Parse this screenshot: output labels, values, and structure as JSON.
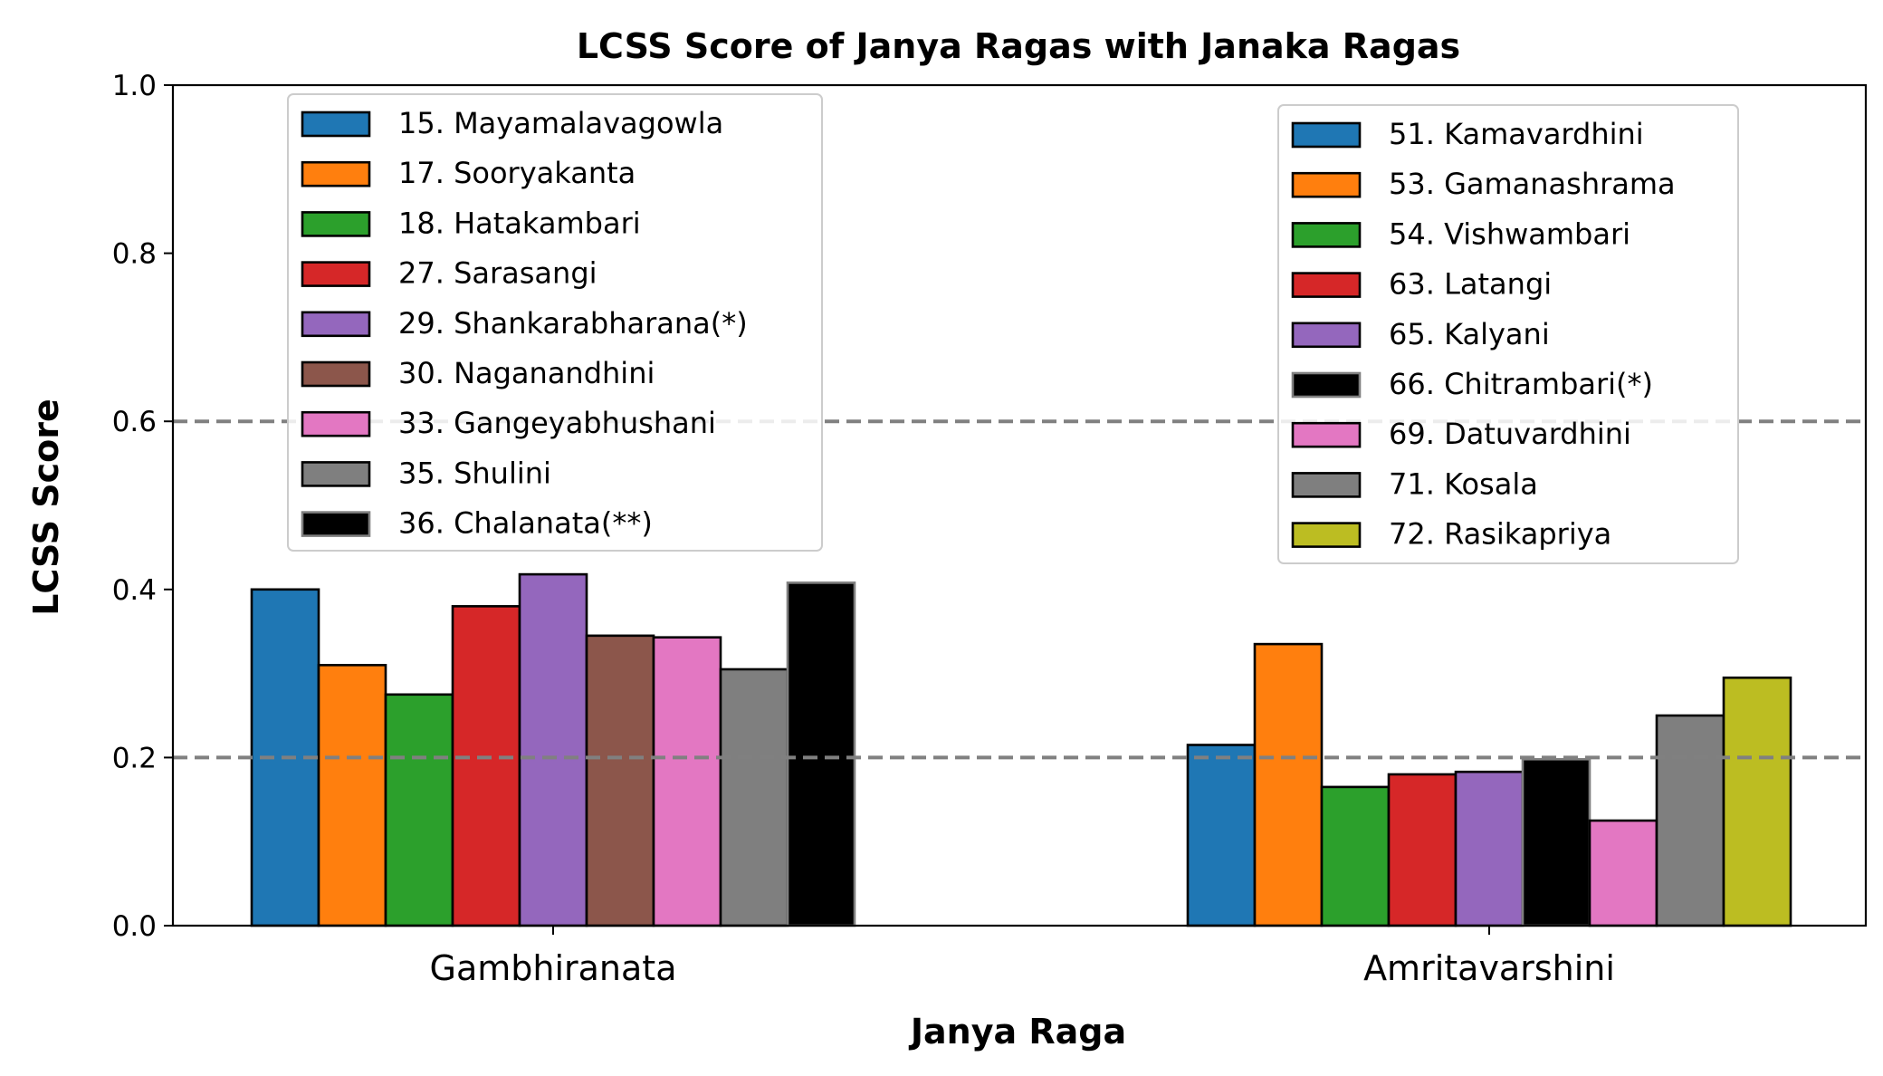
{
  "chart_data": {
    "type": "bar",
    "title": "LCSS Score of Janya Ragas with Janaka Ragas",
    "xlabel": "Janya Raga",
    "ylabel": "LCSS Score",
    "ylim": [
      0,
      1.0
    ],
    "yticks": [
      "0.0",
      "0.2",
      "0.4",
      "0.6",
      "0.8",
      "1.0"
    ],
    "reference_lines": [
      0.2,
      0.6
    ],
    "grid": false,
    "groups": [
      {
        "category": "Gambhiranata",
        "legend_position": "upper-left",
        "series": [
          {
            "name": "15. Mayamalavagowla",
            "value": 0.4,
            "color": "#1f77b4"
          },
          {
            "name": "17. Sooryakanta",
            "value": 0.31,
            "color": "#ff7f0e"
          },
          {
            "name": "18. Hatakambari",
            "value": 0.275,
            "color": "#2ca02c"
          },
          {
            "name": "27. Sarasangi",
            "value": 0.38,
            "color": "#d62728"
          },
          {
            "name": "29. Shankarabharana(*)",
            "value": 0.418,
            "color": "#9467bd"
          },
          {
            "name": "30. Naganandhini",
            "value": 0.345,
            "color": "#8c564b"
          },
          {
            "name": "33. Gangeyabhushani",
            "value": 0.343,
            "color": "#e377c2"
          },
          {
            "name": "35. Shulini",
            "value": 0.305,
            "color": "#7f7f7f"
          },
          {
            "name": "36. Chalanata(**)",
            "value": 0.408,
            "color": "#000000",
            "edge": "#7f7f7f"
          }
        ]
      },
      {
        "category": "Amritavarshini",
        "legend_position": "upper-right",
        "series": [
          {
            "name": "51. Kamavardhini",
            "value": 0.215,
            "color": "#1f77b4"
          },
          {
            "name": "53. Gamanashrama",
            "value": 0.335,
            "color": "#ff7f0e"
          },
          {
            "name": "54. Vishwambari",
            "value": 0.165,
            "color": "#2ca02c"
          },
          {
            "name": "63. Latangi",
            "value": 0.18,
            "color": "#d62728"
          },
          {
            "name": "65. Kalyani",
            "value": 0.183,
            "color": "#9467bd"
          },
          {
            "name": "66. Chitrambari(*)",
            "value": 0.198,
            "color": "#000000",
            "edge": "#7f7f7f"
          },
          {
            "name": "69. Datuvardhini",
            "value": 0.125,
            "color": "#e377c2"
          },
          {
            "name": "71. Kosala",
            "value": 0.25,
            "color": "#7f7f7f"
          },
          {
            "name": "72. Rasikapriya",
            "value": 0.295,
            "color": "#bcbd22"
          }
        ]
      }
    ]
  }
}
